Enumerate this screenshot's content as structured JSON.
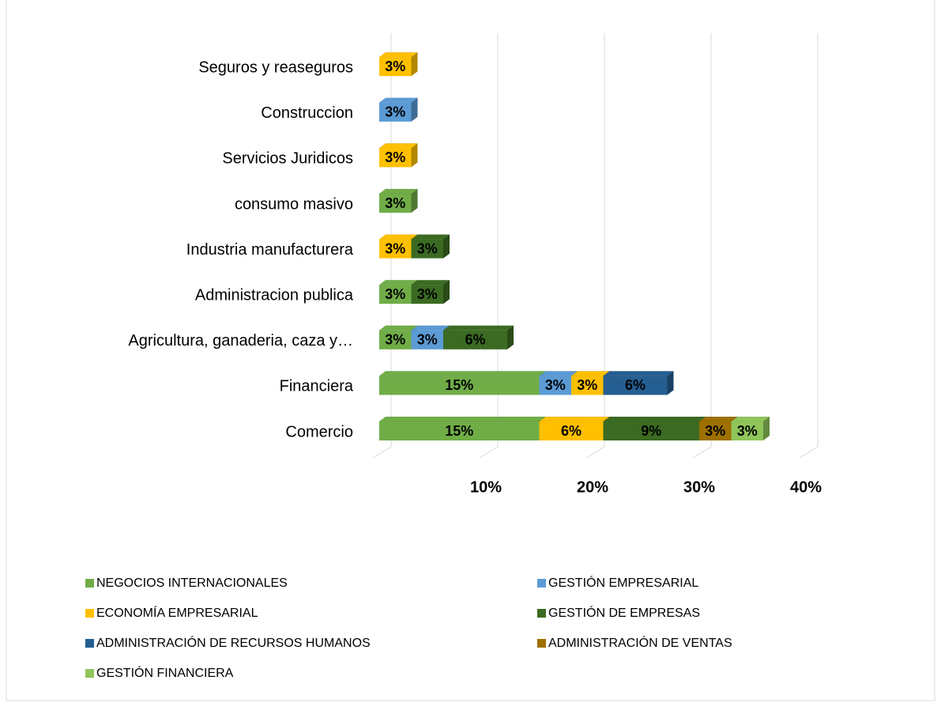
{
  "chart_data": {
    "type": "stacked_bar_horizontal",
    "categories": [
      "Comercio",
      "Financiera",
      "Agricultura, ganaderia, caza y…",
      "Administracion publica",
      "Industria manufacturera",
      "consumo masivo",
      "Servicios Juridicos",
      "Construccion",
      "Seguros y reaseguros"
    ],
    "series": [
      {
        "name": "NEGOCIOS INTERNACIONALES",
        "color": "#70ad47",
        "values": [
          15,
          15,
          3,
          3,
          null,
          3,
          null,
          null,
          null
        ],
        "value_labels": [
          "15%",
          "15%",
          "3%",
          "3%",
          null,
          "3%",
          null,
          null,
          null
        ]
      },
      {
        "name": "GESTIÓN EMPRESARIAL",
        "color": "#5b9bd5",
        "values": [
          null,
          3,
          3,
          null,
          null,
          null,
          null,
          3,
          null
        ],
        "value_labels": [
          null,
          "3%",
          "3%",
          null,
          null,
          null,
          null,
          "3%",
          null
        ]
      },
      {
        "name": "ECONOMÍA EMPRESARIAL",
        "color": "#ffc000",
        "values": [
          6,
          3,
          null,
          null,
          3,
          null,
          3,
          null,
          3
        ],
        "value_labels": [
          "6%",
          "3%",
          null,
          null,
          "3%",
          null,
          "3%",
          null,
          "3%"
        ]
      },
      {
        "name": "GESTIÓN DE EMPRESAS",
        "color": "#3b6b22",
        "values": [
          9,
          null,
          6,
          3,
          3,
          null,
          null,
          null,
          null
        ],
        "value_labels": [
          "9%",
          null,
          "6%",
          "3%",
          "3%",
          null,
          null,
          null,
          null
        ]
      },
      {
        "name": "ADMINISTRACIÓN DE RECURSOS HUMANOS",
        "color": "#255e91",
        "values": [
          null,
          6,
          null,
          null,
          null,
          null,
          null,
          null,
          null
        ],
        "value_labels": [
          null,
          "6%",
          null,
          null,
          null,
          null,
          null,
          null,
          null
        ]
      },
      {
        "name": "ADMINISTRACIÓN DE VENTAS",
        "color": "#9e7000",
        "values": [
          3,
          null,
          null,
          null,
          null,
          null,
          null,
          null,
          null
        ],
        "value_labels": [
          "3%",
          null,
          null,
          null,
          null,
          null,
          null,
          null,
          null
        ]
      },
      {
        "name": "GESTIÓN FINANCIERA",
        "color": "#8fc55a",
        "values": [
          3,
          null,
          null,
          null,
          null,
          null,
          null,
          null,
          null
        ],
        "value_labels": [
          "3%",
          null,
          null,
          null,
          null,
          null,
          null,
          null,
          null
        ]
      }
    ],
    "xlim": [
      0,
      40
    ],
    "xticks": [
      {
        "value": 10,
        "label": "10%"
      },
      {
        "value": 20,
        "label": "20%"
      },
      {
        "value": 30,
        "label": "30%"
      },
      {
        "value": 40,
        "label": "40%"
      }
    ],
    "grid": true,
    "legend": "bottom"
  }
}
